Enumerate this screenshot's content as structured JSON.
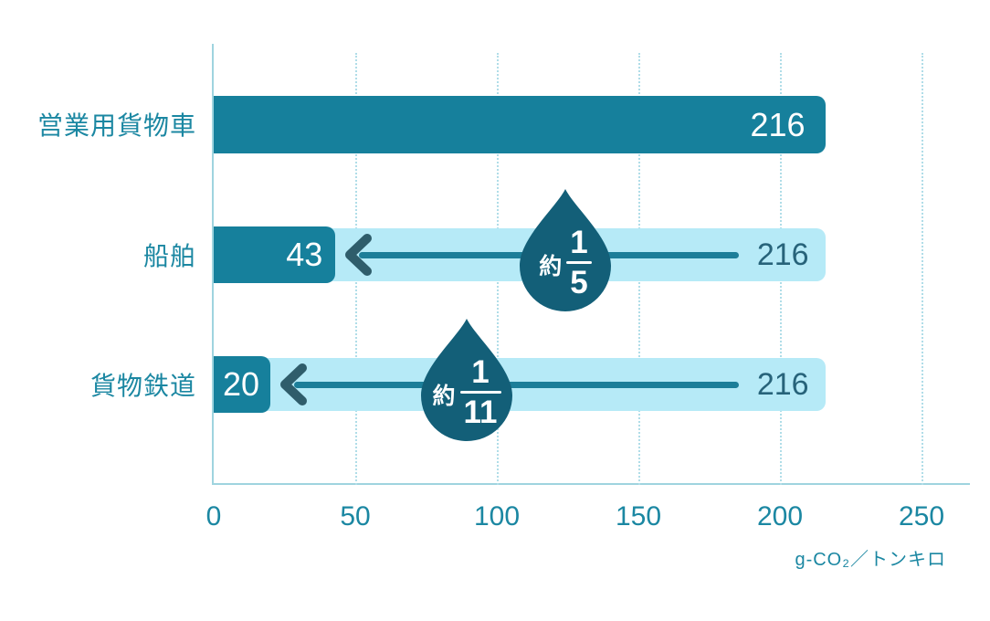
{
  "chart_data": {
    "type": "bar",
    "orientation": "horizontal",
    "title": "",
    "unit_label": "g-CO₂／トンキロ",
    "xlim": [
      0,
      250
    ],
    "x_ticks": [
      "0",
      "50",
      "100",
      "150",
      "200",
      "250"
    ],
    "grid": "vertical dotted gridlines every 50 units",
    "legend": "none",
    "rows": [
      {
        "label": "営業用貨物車",
        "value": 216,
        "value_label": "216"
      },
      {
        "label": "船舶",
        "value": 43,
        "value_label": "43",
        "reference_value": 216,
        "reference_label": "216",
        "ratio_prefix": "約",
        "ratio_numerator": "1",
        "ratio_denominator": "5"
      },
      {
        "label": "貨物鉄道",
        "value": 20,
        "value_label": "20",
        "reference_value": 216,
        "reference_label": "216",
        "ratio_prefix": "約",
        "ratio_numerator": "1",
        "ratio_denominator": "11"
      }
    ],
    "colors": {
      "bar": "#16809c",
      "reference_bar": "#b6eaf7",
      "droplet": "#135f78",
      "arrow_line": "#1c7e99",
      "arrow_head": "#2f5d6b",
      "axis_line": "#9fd4df",
      "gridline": "#b0dde8",
      "label_text": "#1b87a2",
      "value_on_dark": "#ffffff",
      "value_on_light": "#27637a"
    }
  }
}
